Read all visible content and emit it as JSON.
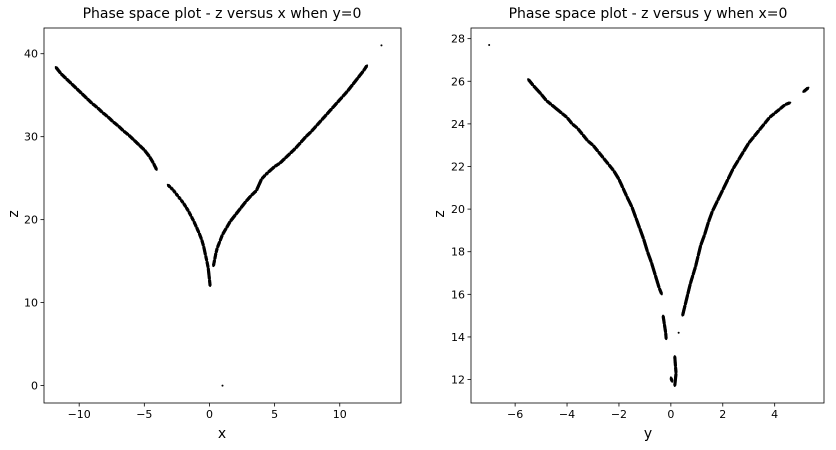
{
  "colors": {
    "background": "#ffffff",
    "points": "#000000",
    "axes": "#000000"
  },
  "chart_data": [
    {
      "type": "scatter",
      "title": "Phase space plot - z versus x when y=0",
      "xlabel": "x",
      "ylabel": "z",
      "xlim": [
        -12.7,
        14.7
      ],
      "ylim": [
        -2.1,
        43.1
      ],
      "xticks": [
        -10,
        -5,
        0,
        5,
        10
      ],
      "yticks": [
        0,
        10,
        20,
        30,
        40
      ],
      "grid": false,
      "series": [
        {
          "points": [
            [
              -11.8,
              38.4
            ],
            [
              -11.4,
              37.6
            ],
            [
              -11.0,
              37.0
            ],
            [
              -10.6,
              36.4
            ],
            [
              -10.2,
              35.8
            ],
            [
              -9.8,
              35.2
            ],
            [
              -9.4,
              34.6
            ],
            [
              -9.0,
              34.0
            ],
            [
              -8.6,
              33.5
            ],
            [
              -8.2,
              32.9
            ],
            [
              -7.8,
              32.4
            ],
            [
              -7.4,
              31.8
            ],
            [
              -7.0,
              31.3
            ],
            [
              -6.6,
              30.7
            ],
            [
              -6.2,
              30.2
            ],
            [
              -5.8,
              29.6
            ],
            [
              -5.4,
              29.0
            ],
            [
              -5.0,
              28.4
            ],
            [
              -4.6,
              27.6
            ],
            [
              -4.3,
              26.8
            ],
            [
              -4.05,
              26.0
            ],
            [
              -3.2,
              24.2
            ],
            [
              -3.0,
              23.9
            ],
            [
              -2.8,
              23.6
            ],
            [
              -2.6,
              23.2
            ],
            [
              -2.4,
              22.8
            ],
            [
              -2.2,
              22.4
            ],
            [
              -2.0,
              22.0
            ],
            [
              -1.8,
              21.5
            ],
            [
              -1.6,
              21.0
            ],
            [
              -1.4,
              20.4
            ],
            [
              -1.2,
              19.8
            ],
            [
              -1.0,
              19.1
            ],
            [
              -0.8,
              18.4
            ],
            [
              -0.6,
              17.6
            ],
            [
              -0.45,
              16.8
            ],
            [
              -0.3,
              15.7
            ],
            [
              -0.2,
              15.0
            ],
            [
              -0.1,
              14.2
            ],
            [
              0.0,
              12.8
            ],
            [
              0.05,
              12.0
            ],
            [
              0.3,
              14.4
            ],
            [
              0.4,
              15.2
            ],
            [
              0.5,
              16.0
            ],
            [
              0.6,
              16.6
            ],
            [
              0.8,
              17.4
            ],
            [
              1.0,
              18.2
            ],
            [
              1.3,
              19.0
            ],
            [
              1.6,
              19.8
            ],
            [
              2.0,
              20.6
            ],
            [
              2.4,
              21.4
            ],
            [
              2.8,
              22.2
            ],
            [
              3.2,
              22.9
            ],
            [
              3.6,
              23.5
            ],
            [
              4.0,
              24.9
            ],
            [
              4.3,
              25.4
            ],
            [
              4.5,
              25.7
            ],
            [
              5.0,
              26.4
            ],
            [
              5.4,
              26.8
            ],
            [
              5.8,
              27.4
            ],
            [
              6.2,
              28.0
            ],
            [
              6.6,
              28.6
            ],
            [
              7.0,
              29.3
            ],
            [
              7.4,
              30.0
            ],
            [
              7.8,
              30.6
            ],
            [
              8.2,
              31.3
            ],
            [
              8.6,
              32.0
            ],
            [
              9.0,
              32.7
            ],
            [
              9.4,
              33.4
            ],
            [
              9.8,
              34.1
            ],
            [
              10.2,
              34.8
            ],
            [
              10.6,
              35.5
            ],
            [
              11.0,
              36.3
            ],
            [
              11.4,
              37.1
            ],
            [
              11.8,
              37.9
            ],
            [
              12.1,
              38.6
            ],
            [
              13.2,
              41.0
            ],
            [
              1.0,
              0.0
            ]
          ]
        }
      ]
    },
    {
      "type": "scatter",
      "title": "Phase space plot - z versus y when x=0",
      "xlabel": "y",
      "ylabel": "z",
      "xlim": [
        -7.7,
        5.9
      ],
      "ylim": [
        10.9,
        28.5
      ],
      "xticks": [
        -6,
        -4,
        -2,
        0,
        2,
        4
      ],
      "yticks": [
        12,
        14,
        16,
        18,
        20,
        22,
        24,
        26,
        28
      ],
      "grid": false,
      "series": [
        {
          "points": [
            [
              -7.0,
              27.7
            ],
            [
              -5.5,
              26.1
            ],
            [
              -5.3,
              25.8
            ],
            [
              -5.0,
              25.4
            ],
            [
              -4.8,
              25.1
            ],
            [
              -4.6,
              24.9
            ],
            [
              -4.2,
              24.5
            ],
            [
              -4.0,
              24.3
            ],
            [
              -3.8,
              24.0
            ],
            [
              -3.6,
              23.8
            ],
            [
              -3.4,
              23.5
            ],
            [
              -3.2,
              23.2
            ],
            [
              -3.0,
              23.0
            ],
            [
              -2.8,
              22.7
            ],
            [
              -2.6,
              22.4
            ],
            [
              -2.4,
              22.1
            ],
            [
              -2.2,
              21.8
            ],
            [
              -2.0,
              21.4
            ],
            [
              -1.85,
              21.0
            ],
            [
              -1.7,
              20.6
            ],
            [
              -1.5,
              20.1
            ],
            [
              -1.35,
              19.6
            ],
            [
              -1.2,
              19.1
            ],
            [
              -1.05,
              18.6
            ],
            [
              -0.9,
              18.0
            ],
            [
              -0.75,
              17.5
            ],
            [
              -0.6,
              16.9
            ],
            [
              -0.45,
              16.3
            ],
            [
              -0.35,
              16.0
            ],
            [
              -0.3,
              15.0
            ],
            [
              -0.25,
              14.6
            ],
            [
              -0.2,
              14.2
            ],
            [
              -0.18,
              13.9
            ],
            [
              0.0,
              12.1
            ],
            [
              0.05,
              11.9
            ],
            [
              0.15,
              13.1
            ],
            [
              0.18,
              12.6
            ],
            [
              0.2,
              12.3
            ],
            [
              0.15,
              11.7
            ],
            [
              0.3,
              14.2
            ],
            [
              0.45,
              15.0
            ],
            [
              0.55,
              15.5
            ],
            [
              0.65,
              16.0
            ],
            [
              0.75,
              16.5
            ],
            [
              0.85,
              16.9
            ],
            [
              0.95,
              17.3
            ],
            [
              1.05,
              17.8
            ],
            [
              1.15,
              18.3
            ],
            [
              1.3,
              18.8
            ],
            [
              1.45,
              19.4
            ],
            [
              1.6,
              19.9
            ],
            [
              1.8,
              20.4
            ],
            [
              2.0,
              20.9
            ],
            [
              2.2,
              21.4
            ],
            [
              2.4,
              21.9
            ],
            [
              2.6,
              22.3
            ],
            [
              2.8,
              22.7
            ],
            [
              3.0,
              23.1
            ],
            [
              3.2,
              23.4
            ],
            [
              3.4,
              23.7
            ],
            [
              3.6,
              24.0
            ],
            [
              3.8,
              24.3
            ],
            [
              4.0,
              24.5
            ],
            [
              4.2,
              24.7
            ],
            [
              4.4,
              24.9
            ],
            [
              4.6,
              25.0
            ],
            [
              5.1,
              25.5
            ],
            [
              5.3,
              25.7
            ]
          ]
        }
      ]
    }
  ]
}
